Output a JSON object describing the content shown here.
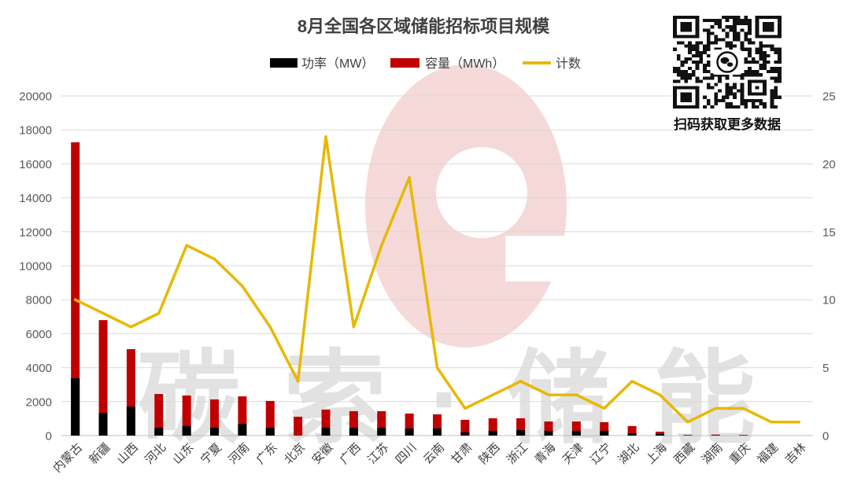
{
  "chart_data": {
    "type": "bar",
    "title": "8月全国各区域储能招标项目规模",
    "categories": [
      "内蒙古",
      "新疆",
      "山西",
      "河北",
      "山东",
      "宁夏",
      "河南",
      "广东",
      "北京",
      "安徽",
      "广西",
      "江苏",
      "四川",
      "云南",
      "甘肃",
      "陕西",
      "浙江",
      "青海",
      "天津",
      "辽宁",
      "湖北",
      "上海",
      "西藏",
      "湖南",
      "重庆",
      "福建",
      "吉林"
    ],
    "series": [
      {
        "name": "功率（MW）",
        "type": "bar",
        "axis": "left",
        "color": "#000000",
        "values": [
          3380,
          1340,
          1710,
          460,
          560,
          460,
          690,
          460,
          0,
          460,
          460,
          460,
          420,
          420,
          190,
          280,
          320,
          280,
          280,
          280,
          140,
          90,
          10,
          15,
          10,
          0,
          0
        ]
      },
      {
        "name": "容量（MWh）",
        "type": "bar",
        "axis": "left",
        "color": "#C00000",
        "values": [
          17270,
          6800,
          5090,
          2450,
          2360,
          2130,
          2310,
          2040,
          1110,
          1530,
          1440,
          1440,
          1300,
          1250,
          930,
          1020,
          1020,
          830,
          830,
          790,
          560,
          230,
          40,
          60,
          40,
          0,
          0
        ]
      },
      {
        "name": "计数",
        "type": "line",
        "axis": "right",
        "color": "#E8B800",
        "values": [
          10,
          9,
          8,
          9,
          14,
          13,
          11,
          8,
          4,
          22,
          8,
          14,
          19,
          5,
          2,
          3,
          4,
          3,
          3,
          2,
          4,
          3,
          1,
          2,
          2,
          1,
          1
        ]
      }
    ],
    "y_left": {
      "min": 0,
      "max": 20000,
      "ticks": [
        0,
        2000,
        4000,
        6000,
        8000,
        10000,
        12000,
        14000,
        16000,
        18000,
        20000
      ]
    },
    "y_right": {
      "min": 0,
      "max": 25,
      "ticks": [
        0,
        5,
        10,
        15,
        20,
        25
      ]
    },
    "grid": true,
    "legend_position": "top"
  },
  "qr": {
    "caption": "扫码获取更多数据",
    "icon": "qr-code",
    "center_icon": "wechat-icon"
  },
  "watermark": {
    "text": "碳索·储能",
    "logo_icon": "brand-logo-icon",
    "color": "#C00000"
  }
}
